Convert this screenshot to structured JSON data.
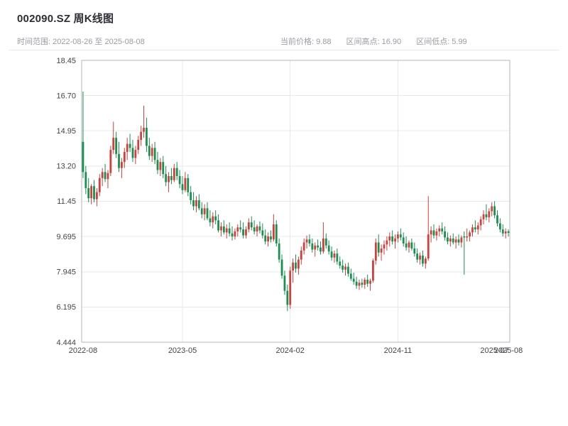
{
  "header": {
    "title": "002090.SZ 周K线图",
    "time_range": "时间范围: 2022-08-26 至 2025-08-08",
    "stats": {
      "current": {
        "label": "当前价格:",
        "value": "9.88"
      },
      "high": {
        "label": "区间高点:",
        "value": "16.90"
      },
      "low": {
        "label": "区间低点:",
        "value": "5.99"
      }
    }
  },
  "chart_data": {
    "type": "candlestick",
    "title": "002090.SZ 周K线图",
    "frequency": "weekly",
    "x_start": "2022-08-26",
    "x_end": "2025-08-08",
    "ylim": [
      4.444,
      18.45
    ],
    "grid": true,
    "up_color": "#d23f3a",
    "down_color": "#169150",
    "grid_color": "#e8e8e8",
    "border_color": "#b5b5b5",
    "tick_color": "#44444a",
    "y_ticks": [
      {
        "v": 18.45,
        "label": "18.45"
      },
      {
        "v": 16.7,
        "label": "16.70"
      },
      {
        "v": 14.95,
        "label": "14.95"
      },
      {
        "v": 13.2,
        "label": "13.20"
      },
      {
        "v": 11.45,
        "label": "11.45"
      },
      {
        "v": 9.695,
        "label": "9.695"
      },
      {
        "v": 7.945,
        "label": "7.945"
      },
      {
        "v": 6.195,
        "label": "6.195"
      },
      {
        "v": 4.444,
        "label": "4.444"
      }
    ],
    "x_ticks": [
      {
        "label": "2022-08",
        "index": 0,
        "grid": false
      },
      {
        "label": "2023-05",
        "index": 36,
        "grid": true
      },
      {
        "label": "2024-02",
        "index": 75,
        "grid": true
      },
      {
        "label": "2024-11",
        "index": 114,
        "grid": true
      },
      {
        "label": "2025-07",
        "index": 149,
        "grid": false
      },
      {
        "label": "2025-08",
        "index": 154,
        "grid": false
      }
    ],
    "ohlc": [
      [
        14.4,
        16.9,
        12.6,
        12.9
      ],
      [
        12.9,
        13.2,
        11.8,
        12.1
      ],
      [
        12.1,
        12.6,
        11.4,
        11.6
      ],
      [
        11.6,
        12.3,
        11.3,
        12.2
      ],
      [
        12.2,
        12.5,
        11.4,
        11.55
      ],
      [
        11.55,
        12.1,
        11.2,
        11.9
      ],
      [
        11.9,
        12.8,
        11.7,
        12.6
      ],
      [
        12.6,
        13.1,
        12.2,
        12.9
      ],
      [
        12.9,
        13.3,
        12.4,
        12.55
      ],
      [
        12.55,
        13.0,
        12.1,
        12.85
      ],
      [
        12.85,
        14.2,
        12.7,
        14.0
      ],
      [
        14.0,
        15.4,
        13.8,
        14.6
      ],
      [
        14.6,
        14.9,
        13.6,
        13.8
      ],
      [
        13.8,
        14.4,
        12.9,
        13.1
      ],
      [
        13.1,
        13.6,
        12.6,
        13.4
      ],
      [
        13.4,
        14.1,
        13.1,
        13.9
      ],
      [
        13.9,
        14.6,
        13.5,
        14.3
      ],
      [
        14.3,
        14.8,
        13.9,
        14.1
      ],
      [
        14.1,
        14.5,
        13.4,
        13.6
      ],
      [
        13.6,
        14.2,
        13.3,
        14.0
      ],
      [
        14.0,
        14.7,
        13.8,
        14.5
      ],
      [
        14.5,
        15.2,
        14.2,
        14.9
      ],
      [
        14.9,
        16.2,
        14.6,
        15.1
      ],
      [
        15.1,
        15.6,
        13.9,
        14.2
      ],
      [
        14.2,
        14.6,
        13.5,
        13.7
      ],
      [
        13.7,
        14.3,
        13.4,
        14.1
      ],
      [
        14.1,
        14.4,
        13.3,
        13.5
      ],
      [
        13.5,
        13.9,
        12.8,
        13.0
      ],
      [
        13.0,
        13.6,
        12.7,
        13.4
      ],
      [
        13.4,
        13.7,
        12.6,
        12.8
      ],
      [
        12.8,
        13.2,
        12.2,
        12.4
      ],
      [
        12.4,
        12.9,
        11.9,
        12.7
      ],
      [
        12.7,
        13.1,
        12.3,
        12.5
      ],
      [
        12.5,
        13.3,
        12.4,
        13.1
      ],
      [
        13.1,
        13.4,
        12.5,
        12.7
      ],
      [
        12.7,
        13.0,
        12.1,
        12.3
      ],
      [
        12.3,
        12.7,
        11.8,
        12.0
      ],
      [
        12.0,
        12.9,
        11.9,
        12.6
      ],
      [
        12.6,
        12.8,
        11.7,
        11.9
      ],
      [
        11.9,
        12.2,
        11.3,
        11.5
      ],
      [
        11.5,
        11.9,
        11.0,
        11.2
      ],
      [
        11.2,
        11.7,
        10.9,
        11.5
      ],
      [
        11.5,
        11.8,
        11.0,
        11.1
      ],
      [
        11.1,
        11.4,
        10.6,
        10.8
      ],
      [
        10.8,
        11.3,
        10.5,
        11.1
      ],
      [
        11.1,
        11.4,
        10.5,
        10.6
      ],
      [
        10.6,
        11.0,
        10.2,
        10.4
      ],
      [
        10.4,
        10.9,
        10.1,
        10.7
      ],
      [
        10.7,
        11.0,
        10.3,
        10.5
      ],
      [
        10.5,
        10.8,
        9.9,
        10.0
      ],
      [
        10.0,
        10.4,
        9.7,
        10.2
      ],
      [
        10.2,
        10.5,
        9.8,
        9.9
      ],
      [
        9.9,
        10.3,
        9.6,
        10.1
      ],
      [
        10.1,
        10.4,
        9.7,
        9.85
      ],
      [
        9.85,
        10.2,
        9.5,
        9.7
      ],
      [
        9.7,
        10.1,
        9.55,
        9.95
      ],
      [
        9.95,
        10.3,
        9.7,
        10.15
      ],
      [
        10.15,
        10.5,
        9.9,
        10.05
      ],
      [
        10.05,
        10.4,
        9.6,
        9.75
      ],
      [
        9.75,
        10.2,
        9.6,
        10.05
      ],
      [
        10.05,
        10.6,
        9.9,
        10.4
      ],
      [
        10.4,
        10.7,
        10.0,
        10.15
      ],
      [
        10.15,
        10.5,
        9.8,
        9.95
      ],
      [
        9.95,
        10.3,
        9.7,
        10.2
      ],
      [
        10.2,
        10.45,
        9.85,
        10.0
      ],
      [
        10.0,
        10.35,
        9.6,
        9.75
      ],
      [
        9.75,
        10.05,
        9.3,
        9.45
      ],
      [
        9.45,
        9.9,
        9.2,
        9.7
      ],
      [
        9.7,
        10.0,
        9.4,
        9.55
      ],
      [
        9.55,
        10.8,
        9.45,
        10.3
      ],
      [
        10.3,
        10.5,
        9.2,
        9.35
      ],
      [
        9.35,
        9.6,
        8.4,
        8.55
      ],
      [
        8.55,
        8.8,
        7.6,
        7.75
      ],
      [
        7.75,
        8.0,
        6.8,
        7.0
      ],
      [
        7.0,
        7.3,
        5.99,
        6.3
      ],
      [
        6.3,
        8.2,
        6.1,
        8.0
      ],
      [
        8.0,
        8.6,
        7.4,
        8.4
      ],
      [
        8.4,
        8.8,
        7.9,
        8.1
      ],
      [
        8.1,
        8.7,
        7.8,
        8.55
      ],
      [
        8.55,
        9.2,
        8.3,
        9.0
      ],
      [
        9.0,
        9.6,
        8.8,
        9.4
      ],
      [
        9.4,
        9.75,
        9.1,
        9.55
      ],
      [
        9.55,
        9.8,
        9.2,
        9.35
      ],
      [
        9.35,
        9.6,
        8.9,
        9.05
      ],
      [
        9.05,
        9.4,
        8.7,
        9.25
      ],
      [
        9.25,
        9.55,
        9.0,
        9.15
      ],
      [
        9.15,
        9.45,
        8.8,
        8.95
      ],
      [
        8.95,
        10.4,
        8.85,
        9.6
      ],
      [
        9.6,
        9.85,
        9.1,
        9.25
      ],
      [
        9.25,
        9.5,
        8.8,
        8.95
      ],
      [
        8.95,
        9.2,
        8.5,
        8.65
      ],
      [
        8.65,
        9.0,
        8.4,
        8.85
      ],
      [
        8.85,
        9.1,
        8.3,
        8.45
      ],
      [
        8.45,
        8.7,
        8.1,
        8.25
      ],
      [
        8.25,
        8.55,
        7.9,
        8.05
      ],
      [
        8.05,
        8.35,
        7.75,
        8.2
      ],
      [
        8.2,
        8.4,
        7.7,
        7.85
      ],
      [
        7.85,
        8.1,
        7.5,
        7.6
      ],
      [
        7.6,
        7.9,
        7.3,
        7.45
      ],
      [
        7.45,
        7.7,
        7.1,
        7.25
      ],
      [
        7.25,
        7.55,
        7.05,
        7.4
      ],
      [
        7.4,
        7.6,
        7.15,
        7.3
      ],
      [
        7.3,
        7.65,
        7.1,
        7.55
      ],
      [
        7.55,
        7.8,
        7.2,
        7.35
      ],
      [
        7.35,
        7.6,
        7.0,
        7.5
      ],
      [
        7.5,
        8.6,
        7.4,
        8.5
      ],
      [
        8.5,
        9.6,
        8.3,
        9.4
      ],
      [
        9.4,
        9.8,
        8.7,
        8.9
      ],
      [
        8.9,
        9.3,
        8.5,
        9.1
      ],
      [
        9.1,
        9.5,
        8.8,
        9.3
      ],
      [
        9.3,
        9.7,
        9.0,
        9.5
      ],
      [
        9.5,
        9.9,
        9.2,
        9.7
      ],
      [
        9.7,
        10.0,
        9.3,
        9.45
      ],
      [
        9.45,
        9.8,
        9.1,
        9.6
      ],
      [
        9.6,
        9.95,
        9.4,
        9.8
      ],
      [
        9.8,
        10.1,
        9.5,
        9.65
      ],
      [
        9.65,
        9.9,
        9.2,
        9.35
      ],
      [
        9.35,
        9.7,
        9.0,
        9.15
      ],
      [
        9.15,
        9.5,
        8.9,
        9.4
      ],
      [
        9.4,
        9.6,
        9.0,
        9.1
      ],
      [
        9.1,
        9.4,
        8.7,
        8.85
      ],
      [
        8.85,
        9.1,
        8.4,
        8.55
      ],
      [
        8.55,
        8.9,
        8.3,
        8.75
      ],
      [
        8.75,
        9.0,
        8.2,
        8.35
      ],
      [
        8.35,
        8.7,
        8.1,
        8.6
      ],
      [
        8.6,
        11.7,
        8.5,
        9.8
      ],
      [
        9.8,
        10.2,
        9.4,
        10.0
      ],
      [
        10.0,
        10.3,
        9.6,
        9.75
      ],
      [
        9.75,
        10.1,
        9.5,
        9.95
      ],
      [
        9.95,
        10.25,
        9.7,
        10.1
      ],
      [
        10.1,
        10.4,
        9.8,
        9.95
      ],
      [
        9.95,
        10.2,
        9.5,
        9.65
      ],
      [
        9.65,
        9.9,
        9.3,
        9.45
      ],
      [
        9.45,
        9.75,
        9.2,
        9.6
      ],
      [
        9.6,
        9.85,
        9.3,
        9.4
      ],
      [
        9.4,
        9.7,
        9.1,
        9.55
      ],
      [
        9.55,
        9.8,
        9.25,
        9.4
      ],
      [
        9.4,
        9.75,
        9.15,
        9.65
      ],
      [
        9.7,
        9.95,
        7.8,
        9.65
      ],
      [
        9.65,
        10.1,
        9.45,
        9.7
      ],
      [
        9.7,
        10.0,
        9.45,
        9.9
      ],
      [
        9.9,
        10.3,
        9.7,
        10.15
      ],
      [
        10.15,
        10.5,
        9.9,
        10.05
      ],
      [
        10.05,
        10.4,
        9.8,
        10.25
      ],
      [
        10.25,
        10.7,
        10.0,
        10.55
      ],
      [
        10.55,
        11.0,
        10.3,
        10.8
      ],
      [
        10.8,
        11.3,
        10.5,
        10.65
      ],
      [
        10.65,
        11.1,
        10.4,
        10.95
      ],
      [
        10.95,
        11.4,
        10.7,
        11.2
      ],
      [
        11.2,
        11.45,
        10.6,
        10.75
      ],
      [
        10.75,
        11.0,
        10.2,
        10.35
      ],
      [
        10.35,
        10.6,
        9.9,
        10.05
      ],
      [
        10.05,
        10.3,
        9.7,
        9.85
      ],
      [
        9.85,
        10.1,
        9.6,
        9.95
      ],
      [
        9.95,
        10.05,
        9.7,
        9.88
      ]
    ]
  }
}
